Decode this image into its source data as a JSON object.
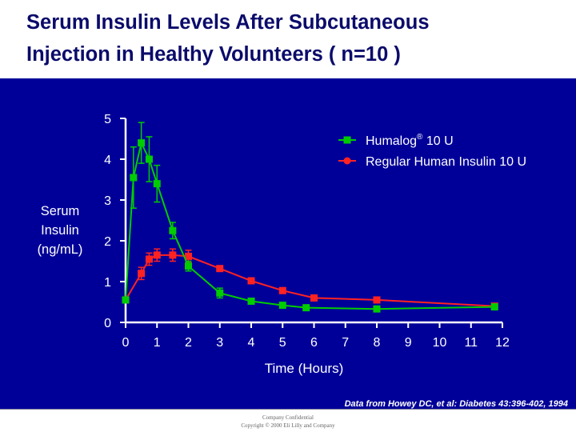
{
  "slide": {
    "title_line1": "Serum Insulin Levels After Subcutaneous",
    "title_line2": "Injection in Healthy Volunteers ( n=10 )",
    "citation": "Data from Howey  DC, et al: Diabetes 43:396-402, 1994",
    "footer_line1": "Company Confidential",
    "footer_line2": "Copyright © 2000 Eli Lilly and Company",
    "colors": {
      "panel": "#000099",
      "title": "#0b0b6b",
      "axis_text": "#ffffff",
      "humalog": "#00cc00",
      "regular": "#ff2222"
    }
  },
  "chart_data": {
    "type": "line",
    "xlabel": "Time (Hours)",
    "ylabel_lines": [
      "Serum",
      "Insulin",
      "(ng/mL)"
    ],
    "xlim": [
      0,
      12
    ],
    "ylim": [
      0,
      5
    ],
    "x_ticks": [
      0,
      1,
      2,
      3,
      4,
      5,
      6,
      7,
      8,
      9,
      10,
      11,
      12
    ],
    "y_ticks": [
      0,
      1,
      2,
      3,
      4,
      5
    ],
    "grid": false,
    "legend_position": "top-right",
    "series": [
      {
        "name": "Humalog® 10 U",
        "legend_main": "Humalog",
        "legend_sup": "®",
        "legend_rest": " 10 U",
        "color": "#00cc00",
        "marker": "square",
        "points": [
          {
            "x": 0.0,
            "y": 0.55,
            "err": 0
          },
          {
            "x": 0.25,
            "y": 3.55,
            "err": 0.75
          },
          {
            "x": 0.5,
            "y": 4.4,
            "err": 0.5
          },
          {
            "x": 0.75,
            "y": 4.0,
            "err": 0.55
          },
          {
            "x": 1.0,
            "y": 3.4,
            "err": 0.45
          },
          {
            "x": 1.5,
            "y": 2.25,
            "err": 0.2
          },
          {
            "x": 2.0,
            "y": 1.38,
            "err": 0.12
          },
          {
            "x": 3.0,
            "y": 0.72,
            "err": 0.12
          },
          {
            "x": 4.0,
            "y": 0.52,
            "err": 0
          },
          {
            "x": 5.0,
            "y": 0.42,
            "err": 0
          },
          {
            "x": 5.75,
            "y": 0.36,
            "err": 0
          },
          {
            "x": 8.0,
            "y": 0.33,
            "err": 0
          },
          {
            "x": 11.75,
            "y": 0.38,
            "err": 0
          }
        ]
      },
      {
        "name": "Regular Human Insulin 10 U",
        "color": "#ff2222",
        "marker": "square",
        "points": [
          {
            "x": 0.0,
            "y": 0.55,
            "err": 0
          },
          {
            "x": 0.5,
            "y": 1.2,
            "err": 0.15
          },
          {
            "x": 0.75,
            "y": 1.55,
            "err": 0.15
          },
          {
            "x": 1.0,
            "y": 1.65,
            "err": 0.15
          },
          {
            "x": 1.5,
            "y": 1.65,
            "err": 0.15
          },
          {
            "x": 2.0,
            "y": 1.62,
            "err": 0.15
          },
          {
            "x": 3.0,
            "y": 1.32,
            "err": 0
          },
          {
            "x": 4.0,
            "y": 1.02,
            "err": 0
          },
          {
            "x": 5.0,
            "y": 0.78,
            "err": 0
          },
          {
            "x": 6.0,
            "y": 0.6,
            "err": 0
          },
          {
            "x": 8.0,
            "y": 0.55,
            "err": 0
          },
          {
            "x": 11.75,
            "y": 0.4,
            "err": 0
          }
        ]
      }
    ]
  }
}
